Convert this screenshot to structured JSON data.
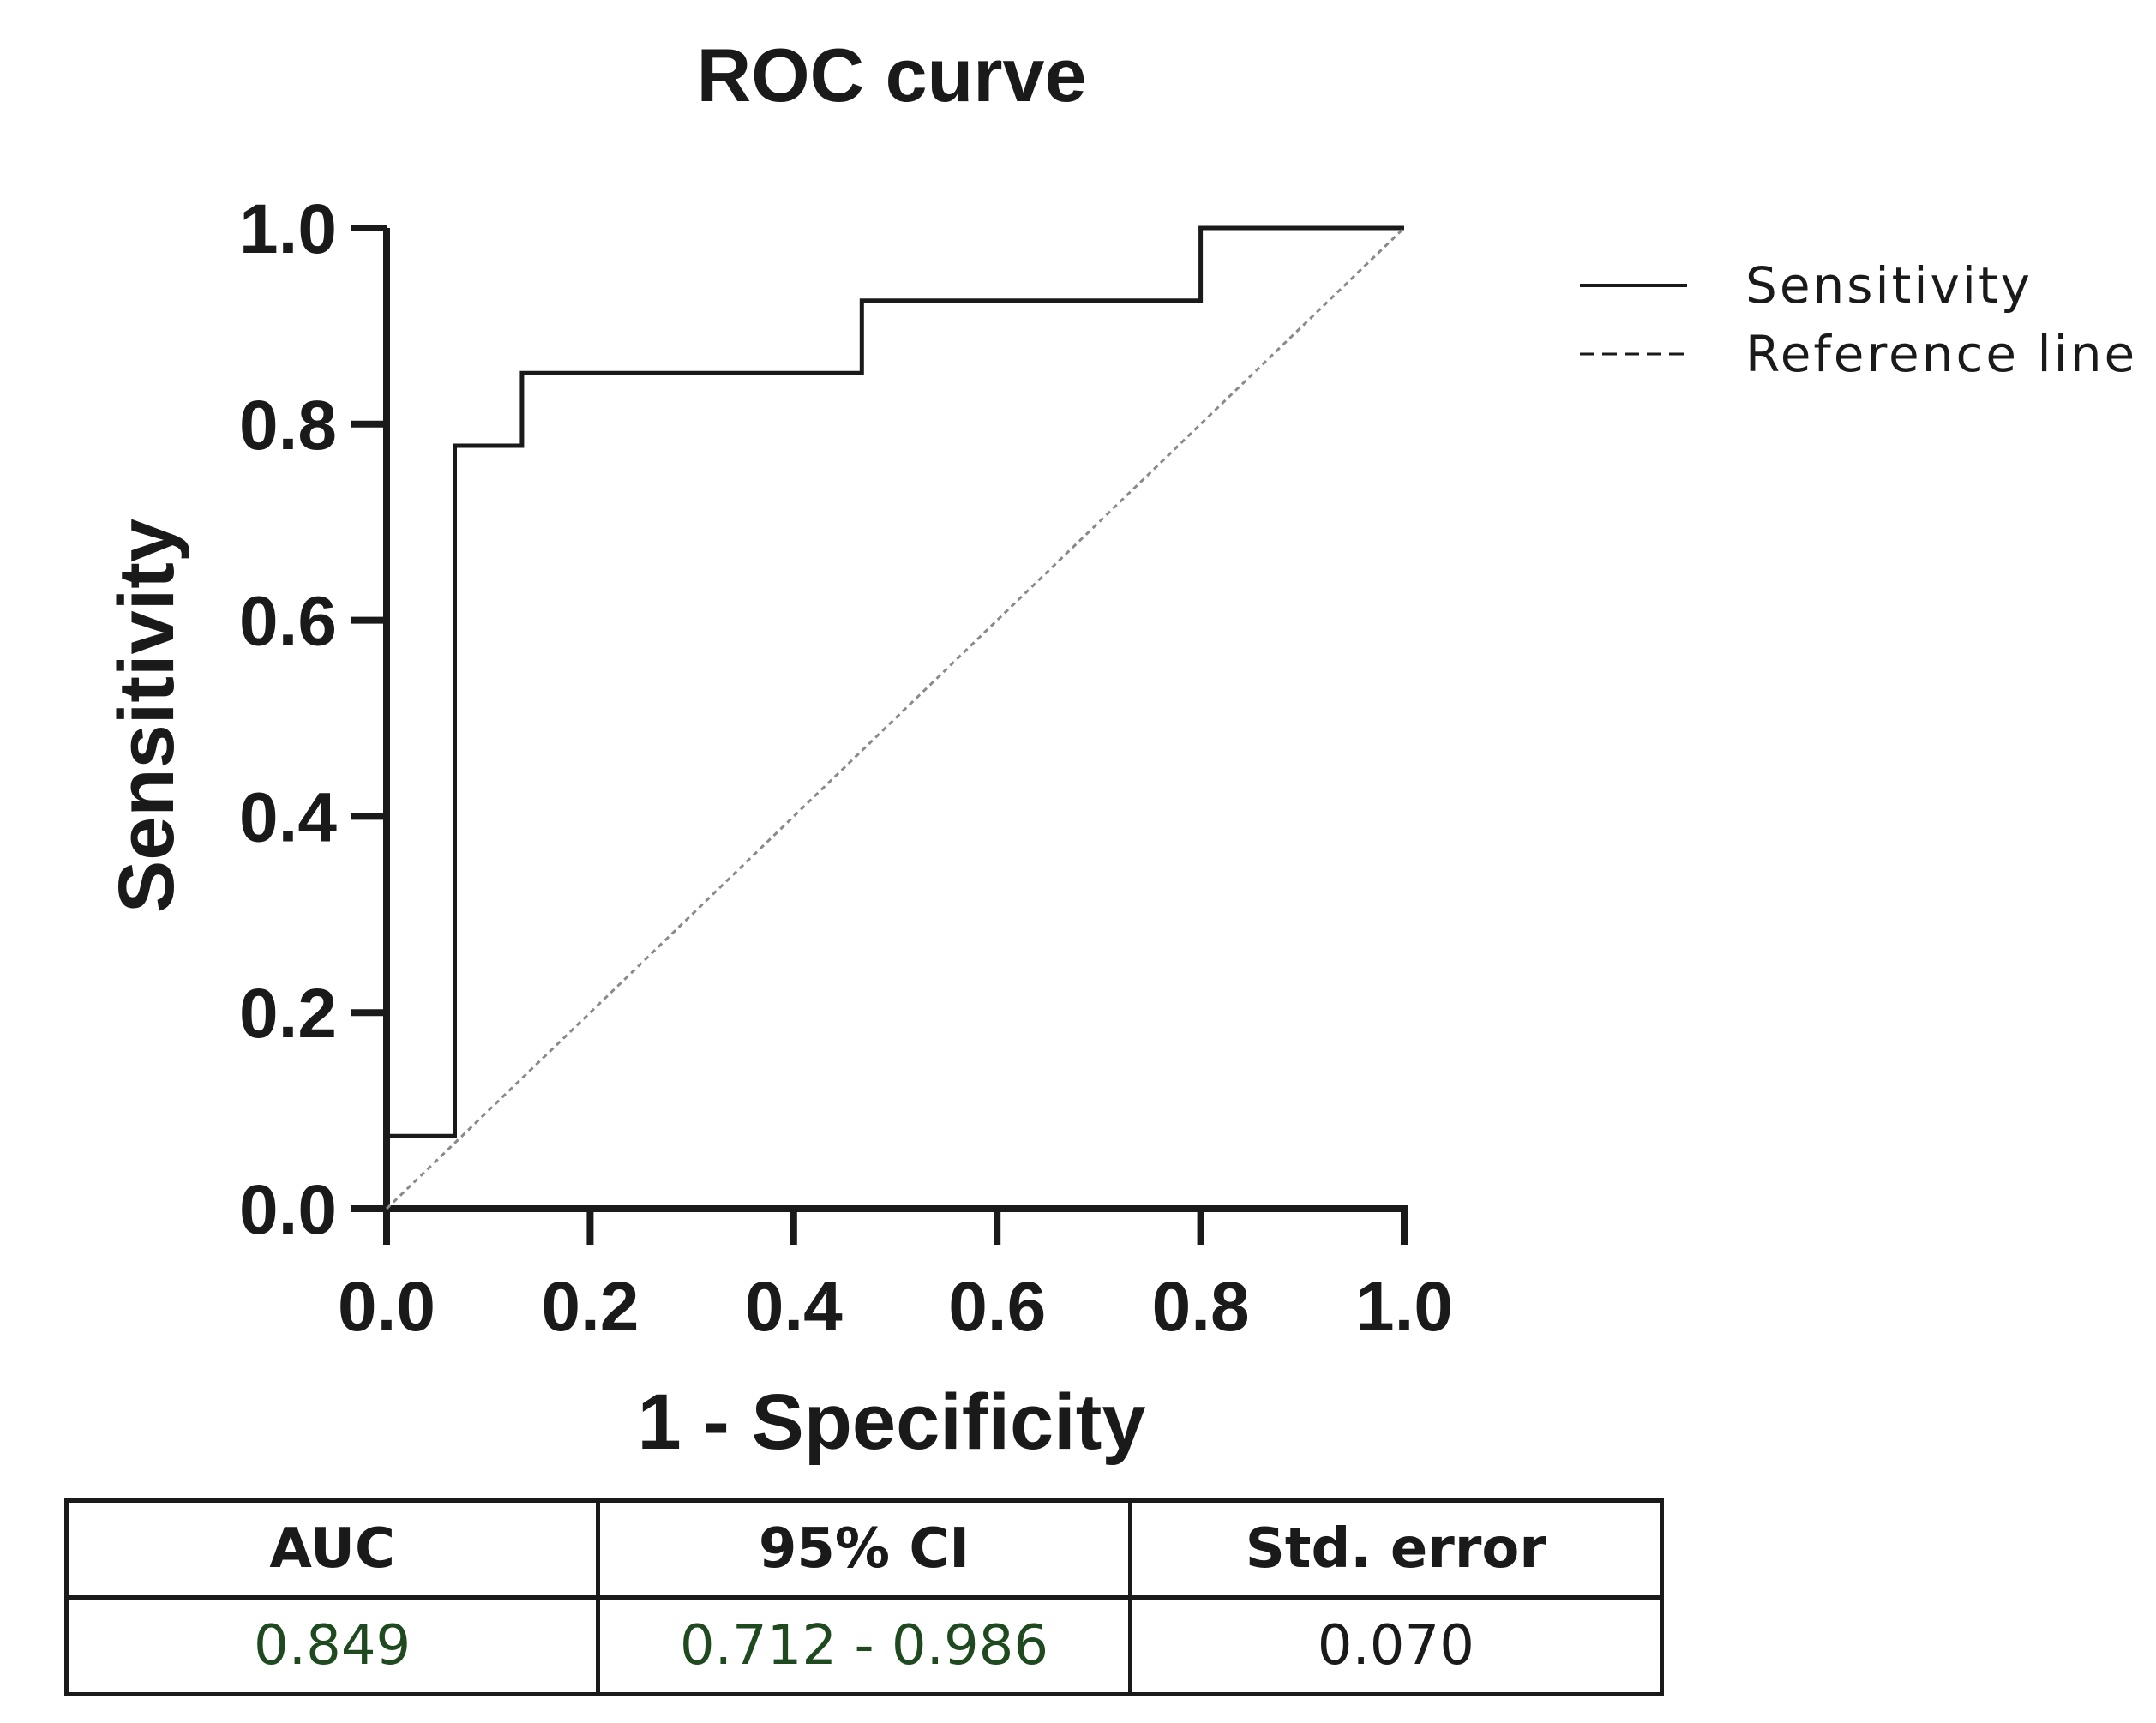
{
  "chart_data": {
    "type": "line",
    "title": "ROC curve",
    "xlabel": "1 - Specificity",
    "ylabel": "Sensitivity",
    "xlim": [
      0,
      1
    ],
    "ylim": [
      0,
      1
    ],
    "x_ticks": [
      "0.0",
      "0.2",
      "0.4",
      "0.6",
      "0.8",
      "1.0"
    ],
    "y_ticks": [
      "0.0",
      "0.2",
      "0.4",
      "0.6",
      "0.8",
      "1.0"
    ],
    "grid": false,
    "legend_position": "right",
    "series": [
      {
        "name": "Sensitivity",
        "style": "solid",
        "color": "#1a1a1a",
        "x": [
          0.0,
          0.0,
          0.067,
          0.067,
          0.133,
          0.133,
          0.467,
          0.467,
          0.8,
          0.8,
          1.0
        ],
        "y": [
          0.0,
          0.074,
          0.074,
          0.778,
          0.778,
          0.852,
          0.852,
          0.926,
          0.926,
          1.0,
          1.0
        ]
      },
      {
        "name": "Reference line",
        "style": "dashed",
        "color": "#8a8a8a",
        "x": [
          0.0,
          1.0
        ],
        "y": [
          0.0,
          1.0
        ]
      }
    ]
  },
  "stats_table": {
    "headers": [
      "AUC",
      "95% CI",
      "Std. error"
    ],
    "row": [
      "0.849",
      "0.712 - 0.986",
      "0.070"
    ],
    "value_colors": [
      "#1f4a1f",
      "#1f4a1f",
      "#1a1a1a"
    ]
  }
}
